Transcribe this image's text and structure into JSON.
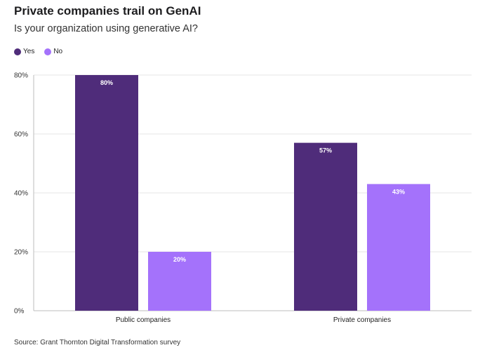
{
  "header": {
    "title": "Private companies trail on GenAI",
    "subtitle": "Is your organization using generative AI?"
  },
  "source": "Source: Grant Thornton Digital Transformation survey",
  "colors": {
    "yes": "#4f2c7a",
    "no": "#a472fb",
    "grid": "#e6e6e6"
  },
  "chart_data": {
    "type": "bar",
    "title": "Private companies trail on GenAI",
    "subtitle": "Is your organization using generative AI?",
    "categories": [
      "Public companies",
      "Private companies"
    ],
    "series": [
      {
        "name": "Yes",
        "values": [
          80,
          57
        ],
        "labels": [
          "80%",
          "57%"
        ]
      },
      {
        "name": "No",
        "values": [
          20,
          43
        ],
        "labels": [
          "20%",
          "43%"
        ]
      }
    ],
    "ylim": [
      0,
      80
    ],
    "yticks": [
      0,
      20,
      40,
      60,
      80
    ],
    "ytick_labels": [
      "0%",
      "20%",
      "40%",
      "60%",
      "80%"
    ],
    "legend": "top-left",
    "grid": true
  }
}
